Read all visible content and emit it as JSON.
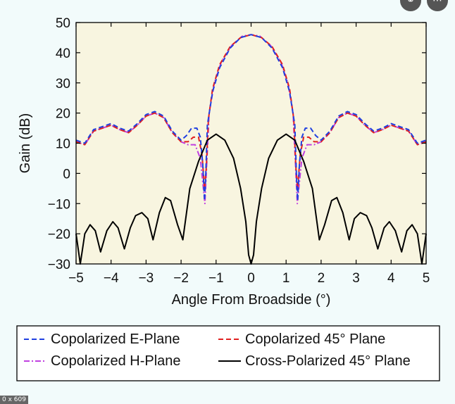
{
  "chart_data": {
    "type": "line",
    "xlabel": "Angle From Broadside (°)",
    "ylabel": "Gain (dB)",
    "xlim": [
      -5,
      5
    ],
    "ylim": [
      -30,
      50
    ],
    "xticks": [
      "−5",
      "−4",
      "−3",
      "−2",
      "−1",
      "0",
      "1",
      "2",
      "3",
      "4",
      "5"
    ],
    "yticks": [
      "−30",
      "−20",
      "−10",
      "0",
      "10",
      "20",
      "30",
      "40",
      "50"
    ],
    "grid": false,
    "plot_background": "#f8f5e0",
    "legend_position": "bottom",
    "series": [
      {
        "name": "Copolarized E-Plane",
        "color": "#2040e0",
        "style": "dashed",
        "x": [
          -5,
          -4.75,
          -4.5,
          -4.25,
          -4,
          -3.75,
          -3.5,
          -3.25,
          -3,
          -2.75,
          -2.5,
          -2.25,
          -2,
          -1.85,
          -1.7,
          -1.55,
          -1.45,
          -1.38,
          -1.33,
          -1.3,
          -1.25,
          -1.1,
          -0.9,
          -0.6,
          -0.3,
          0,
          0.3,
          0.6,
          0.9,
          1.1,
          1.25,
          1.3,
          1.33,
          1.38,
          1.45,
          1.55,
          1.7,
          1.85,
          2,
          2.25,
          2.5,
          2.75,
          3,
          3.25,
          3.5,
          3.75,
          4,
          4.25,
          4.5,
          4.75,
          5
        ],
        "y": [
          11,
          10,
          14.5,
          15.5,
          16.5,
          15,
          14,
          16.5,
          19.5,
          20.5,
          19,
          14,
          11,
          12.5,
          15,
          15,
          12,
          3,
          -9,
          -2,
          16,
          27,
          35,
          41.5,
          45,
          46,
          45,
          41.5,
          35,
          27,
          16,
          -2,
          -9,
          3,
          12,
          15,
          15,
          12.5,
          11,
          14,
          19,
          20.5,
          19.5,
          16.5,
          14,
          15,
          16.5,
          15.5,
          14.5,
          10,
          11
        ]
      },
      {
        "name": "Copolarized 45° Plane",
        "color": "#e02020",
        "style": "dashed",
        "x": [
          -5,
          -4.75,
          -4.5,
          -4.25,
          -4,
          -3.75,
          -3.5,
          -3.25,
          -3,
          -2.75,
          -2.5,
          -2.25,
          -2,
          -1.8,
          -1.65,
          -1.5,
          -1.4,
          -1.33,
          -1.28,
          -1.22,
          -1.1,
          -0.9,
          -0.6,
          -0.3,
          0,
          0.3,
          0.6,
          0.9,
          1.1,
          1.22,
          1.28,
          1.33,
          1.4,
          1.5,
          1.65,
          1.8,
          2,
          2.25,
          2.5,
          2.75,
          3,
          3.25,
          3.5,
          3.75,
          4,
          4.25,
          4.5,
          4.75,
          5
        ],
        "y": [
          10.5,
          9.5,
          14,
          15,
          16,
          14.5,
          13.5,
          16,
          19,
          20,
          18.5,
          13.5,
          10.5,
          10.5,
          12,
          12,
          6,
          -5,
          2,
          18,
          28,
          36,
          42,
          45,
          46,
          45,
          42,
          36,
          28,
          18,
          2,
          -5,
          6,
          12,
          12,
          10.5,
          10.5,
          13.5,
          18.5,
          20,
          19,
          16,
          13.5,
          14.5,
          16,
          15,
          14,
          9.5,
          10.5
        ]
      },
      {
        "name": "Copolarized H-Plane",
        "color": "#c040e0",
        "style": "dashdot",
        "x": [
          -5,
          -4.75,
          -4.5,
          -4.25,
          -4,
          -3.75,
          -3.5,
          -3.25,
          -3,
          -2.75,
          -2.5,
          -2.25,
          -2,
          -1.8,
          -1.6,
          -1.45,
          -1.38,
          -1.32,
          -1.28,
          -1.2,
          -1.05,
          -0.85,
          -0.55,
          -0.25,
          0,
          0.25,
          0.55,
          0.85,
          1.05,
          1.2,
          1.28,
          1.32,
          1.38,
          1.45,
          1.6,
          1.8,
          2,
          2.25,
          2.5,
          2.75,
          3,
          3.25,
          3.5,
          3.75,
          4,
          4.25,
          4.5,
          4.75,
          5
        ],
        "y": [
          10.5,
          9.5,
          14,
          15,
          16,
          14.5,
          13.5,
          16,
          19,
          20,
          18.5,
          13.5,
          10.5,
          9.5,
          9.5,
          5,
          -3,
          -10,
          0,
          20,
          30,
          37,
          42.5,
          45.5,
          46,
          45.5,
          42.5,
          37,
          30,
          20,
          0,
          -10,
          -3,
          5,
          9.5,
          9.5,
          10.5,
          13.5,
          18.5,
          20,
          19,
          16,
          13.5,
          14.5,
          16,
          15,
          14,
          9.5,
          10.5
        ]
      },
      {
        "name": "Cross-Polarized 45° Plane",
        "color": "#000000",
        "style": "solid",
        "x": [
          -5,
          -4.88,
          -4.75,
          -4.6,
          -4.45,
          -4.3,
          -4.12,
          -3.95,
          -3.8,
          -3.62,
          -3.45,
          -3.3,
          -3.12,
          -2.95,
          -2.8,
          -2.62,
          -2.45,
          -2.3,
          -2.1,
          -1.95,
          -1.75,
          -1.5,
          -1.25,
          -1,
          -0.75,
          -0.5,
          -0.3,
          -0.15,
          -0.07,
          0,
          0.07,
          0.15,
          0.3,
          0.5,
          0.75,
          1,
          1.25,
          1.5,
          1.75,
          1.95,
          2.1,
          2.3,
          2.45,
          2.62,
          2.8,
          2.95,
          3.12,
          3.3,
          3.45,
          3.62,
          3.8,
          3.95,
          4.12,
          4.3,
          4.45,
          4.6,
          4.75,
          4.88,
          5
        ],
        "y": [
          -20,
          -30,
          -20,
          -17,
          -19,
          -26,
          -19,
          -16,
          -18,
          -25,
          -18,
          -14,
          -13,
          -15,
          -22,
          -13,
          -8,
          -9,
          -17,
          -22,
          -5,
          4,
          11,
          13,
          11,
          5,
          -5,
          -16,
          -27,
          -30,
          -27,
          -16,
          -5,
          5,
          11,
          13,
          11,
          4,
          -5,
          -22,
          -17,
          -9,
          -8,
          -13,
          -22,
          -15,
          -13,
          -14,
          -18,
          -25,
          -18,
          -16,
          -19,
          -26,
          -19,
          -17,
          -20,
          -30,
          -20
        ]
      }
    ]
  },
  "dimension_badge": "0 x 609"
}
